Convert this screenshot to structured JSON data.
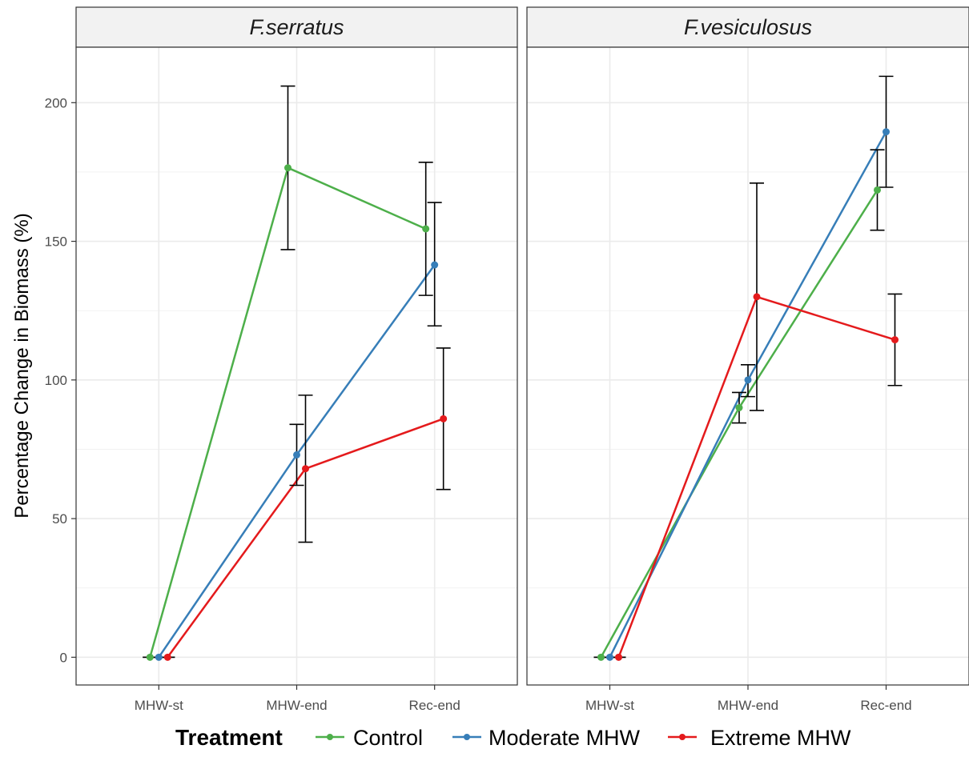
{
  "chart_data": {
    "type": "line",
    "ylabel": "Percentage Change in Biomass (%)",
    "xlabel": "",
    "ylim": [
      -10,
      220
    ],
    "yticks": [
      0,
      50,
      100,
      150,
      200
    ],
    "categories": [
      "MHW-st",
      "MHW-end",
      "Rec-end"
    ],
    "grid": true,
    "legend": {
      "title": "Treatment",
      "position": "bottom",
      "entries": [
        "Control",
        "Moderate MHW",
        "Extreme MHW"
      ]
    },
    "panels": [
      {
        "title": "F.serratus",
        "series": [
          {
            "name": "Control",
            "color": "#4daf4a",
            "values": [
              0,
              176.5,
              154.5
            ],
            "err_low": [
              0,
              147,
              130.5
            ],
            "err_high": [
              0,
              206,
              178.5
            ]
          },
          {
            "name": "Moderate MHW",
            "color": "#377eb8",
            "values": [
              0,
              73,
              141.5
            ],
            "err_low": [
              0,
              62,
              119.5
            ],
            "err_high": [
              0,
              84,
              164
            ]
          },
          {
            "name": "Extreme MHW",
            "color": "#e41a1c",
            "values": [
              0,
              68,
              86
            ],
            "err_low": [
              0,
              41.5,
              60.5
            ],
            "err_high": [
              0,
              94.5,
              111.5
            ]
          }
        ]
      },
      {
        "title": "F.vesiculosus",
        "series": [
          {
            "name": "Control",
            "color": "#4daf4a",
            "values": [
              0,
              90,
              168.5
            ],
            "err_low": [
              0,
              84.5,
              154
            ],
            "err_high": [
              0,
              95.5,
              183
            ]
          },
          {
            "name": "Moderate MHW",
            "color": "#377eb8",
            "values": [
              0,
              100,
              189.5
            ],
            "err_low": [
              0,
              94,
              169.5
            ],
            "err_high": [
              0,
              105.5,
              209.5
            ]
          },
          {
            "name": "Extreme MHW",
            "color": "#e41a1c",
            "values": [
              0,
              130,
              114.5
            ],
            "err_low": [
              0,
              89,
              98
            ],
            "err_high": [
              0,
              171,
              131
            ]
          }
        ]
      }
    ]
  }
}
